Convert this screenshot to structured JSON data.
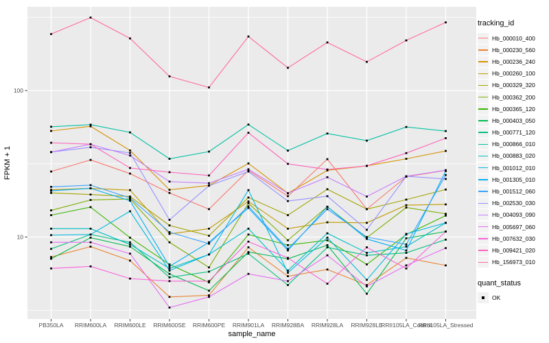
{
  "chart_data": {
    "type": "line",
    "title": "",
    "xlabel": "sample_name",
    "ylabel": "FPKM + 1",
    "y_scale": "log10",
    "y_tick_labels": [
      "100",
      "10"
    ],
    "y_tick_values": [
      100,
      10
    ],
    "y_minor_values": [
      316.23,
      31.623,
      3.1623
    ],
    "ylim": [
      2.8,
      375
    ],
    "grid": true,
    "legend_position": "right",
    "marker": "small-black-square",
    "categories": [
      "PB350LA",
      "RRIM600LA",
      "RRIM600LE",
      "RRIM600SE",
      "RRIM600PE",
      "RRIM901LA",
      "RRIM928BA",
      "RRIM928LA",
      "RRIM928LE",
      "RRII105LA_Control",
      "RRII105LA_Stressed"
    ],
    "series": [
      {
        "name": "Hb_000010_400",
        "color": "#F8766D",
        "values": [
          28,
          33.6,
          27.1,
          20,
          15.5,
          28.5,
          19,
          34,
          15.5,
          25.8,
          28.5
        ]
      },
      {
        "name": "Hb_000230_560",
        "color": "#EA8331",
        "values": [
          7.3,
          8.6,
          6.9,
          3.9,
          4.0,
          8.5,
          5.4,
          6.0,
          4.7,
          7.2,
          6.4
        ]
      },
      {
        "name": "Hb_000236_240",
        "color": "#D89000",
        "values": [
          53,
          57,
          39,
          21,
          22.5,
          31.8,
          19.9,
          28.5,
          30.6,
          34.2,
          38.7
        ]
      },
      {
        "name": "Hb_000260_100",
        "color": "#C09B00",
        "values": [
          21,
          21.5,
          20.9,
          10.5,
          11.4,
          17.5,
          11.4,
          12.6,
          12.5,
          16.5,
          16.7
        ]
      },
      {
        "name": "Hb_000329_320",
        "color": "#A3A500",
        "values": [
          20,
          19.5,
          18.9,
          12,
          10.2,
          18.6,
          14.1,
          21.2,
          15.5,
          18,
          21.1
        ]
      },
      {
        "name": "Hb_000362_200",
        "color": "#7CAE00",
        "values": [
          15.2,
          17.9,
          18.2,
          9.2,
          6.2,
          17,
          9.5,
          16.1,
          9.9,
          15.9,
          14.4
        ]
      },
      {
        "name": "Hb_000365_120",
        "color": "#39B600",
        "values": [
          14.1,
          16,
          9.9,
          6.5,
          4.9,
          10.4,
          8.8,
          9.5,
          6.5,
          10.4,
          14.0
        ]
      },
      {
        "name": "Hb_000403_050",
        "color": "#00BB4E",
        "values": [
          7.1,
          9.9,
          8.6,
          5.6,
          4.3,
          7.9,
          7.1,
          8.8,
          4.1,
          9.8,
          10.9
        ]
      },
      {
        "name": "Hb_000771_120",
        "color": "#00BF7D",
        "values": [
          8.3,
          10.4,
          9.2,
          5.3,
          5.8,
          7.7,
          4.7,
          8.5,
          7.5,
          7.8,
          9.6
        ]
      },
      {
        "name": "Hb_000866_010",
        "color": "#00C1A3",
        "values": [
          56.6,
          58.5,
          51.8,
          34.2,
          38.3,
          58.6,
          38.9,
          50.9,
          45.5,
          56.4,
          52.9
        ]
      },
      {
        "name": "Hb_000883_020",
        "color": "#00BFC4",
        "values": [
          11.4,
          11.4,
          8.9,
          6.1,
          7.6,
          11.4,
          5.9,
          10.6,
          7.8,
          8.6,
          12.5
        ]
      },
      {
        "name": "Hb_001012_010",
        "color": "#00BAE0",
        "values": [
          10.3,
          10.4,
          15.0,
          5.9,
          7.6,
          20.9,
          5.7,
          9.9,
          5.1,
          10.5,
          12.5
        ]
      },
      {
        "name": "Hb_001305_010",
        "color": "#00B0F6",
        "values": [
          20.7,
          21.5,
          17.7,
          6.3,
          9.2,
          15.8,
          8.1,
          16.1,
          9.7,
          8.1,
          28.2
        ]
      },
      {
        "name": "Hb_001512_060",
        "color": "#35A2FF",
        "values": [
          22,
          22.6,
          18.5,
          10.8,
          9.0,
          16.2,
          8.3,
          15.5,
          10.0,
          8.9,
          26.5
        ]
      },
      {
        "name": "Hb_002530_030",
        "color": "#9590FF",
        "values": [
          38,
          41,
          37.5,
          13.1,
          22.4,
          28,
          17.6,
          19,
          11.2,
          26,
          24.9
        ]
      },
      {
        "name": "Hb_004093_090",
        "color": "#C77CFF",
        "values": [
          38,
          43,
          36,
          23.9,
          23.3,
          29,
          19.9,
          25.6,
          18.9,
          26,
          28.6
        ]
      },
      {
        "name": "Hb_005697_060",
        "color": "#E76BF3",
        "values": [
          9.2,
          9.2,
          7.7,
          3.3,
          3.9,
          5.6,
          5.0,
          7.5,
          4.6,
          6.4,
          8.4
        ]
      },
      {
        "name": "Hb_007632_030",
        "color": "#FA62DB",
        "values": [
          6.1,
          6.3,
          5.2,
          5.0,
          5.0,
          9.3,
          7.2,
          4.8,
          8.5,
          6.1,
          10.9
        ]
      },
      {
        "name": "Hb_009421_020",
        "color": "#FF62BC",
        "values": [
          44,
          43,
          29.6,
          27.7,
          26.3,
          51.5,
          31.6,
          28.9,
          30.6,
          37.4,
          47.3
        ]
      },
      {
        "name": "Hb_156973_010",
        "color": "#FF6A98",
        "values": [
          243,
          315,
          227,
          125,
          105,
          234,
          143,
          213,
          157,
          220,
          292
        ]
      }
    ],
    "legend": {
      "tracking_title": "tracking_id",
      "quant_title": "quant_status",
      "quant_items": [
        {
          "label": "OK",
          "marker": "black-square"
        }
      ]
    }
  },
  "colors": {
    "panel_bg": "#EBEBEB",
    "grid": "#FFFFFF",
    "tick_text": "#4D4D4D",
    "axis_title": "#000000",
    "tick_mark": "#333333",
    "point": "#000000",
    "legend_key_bg": "#F2F2F2"
  }
}
